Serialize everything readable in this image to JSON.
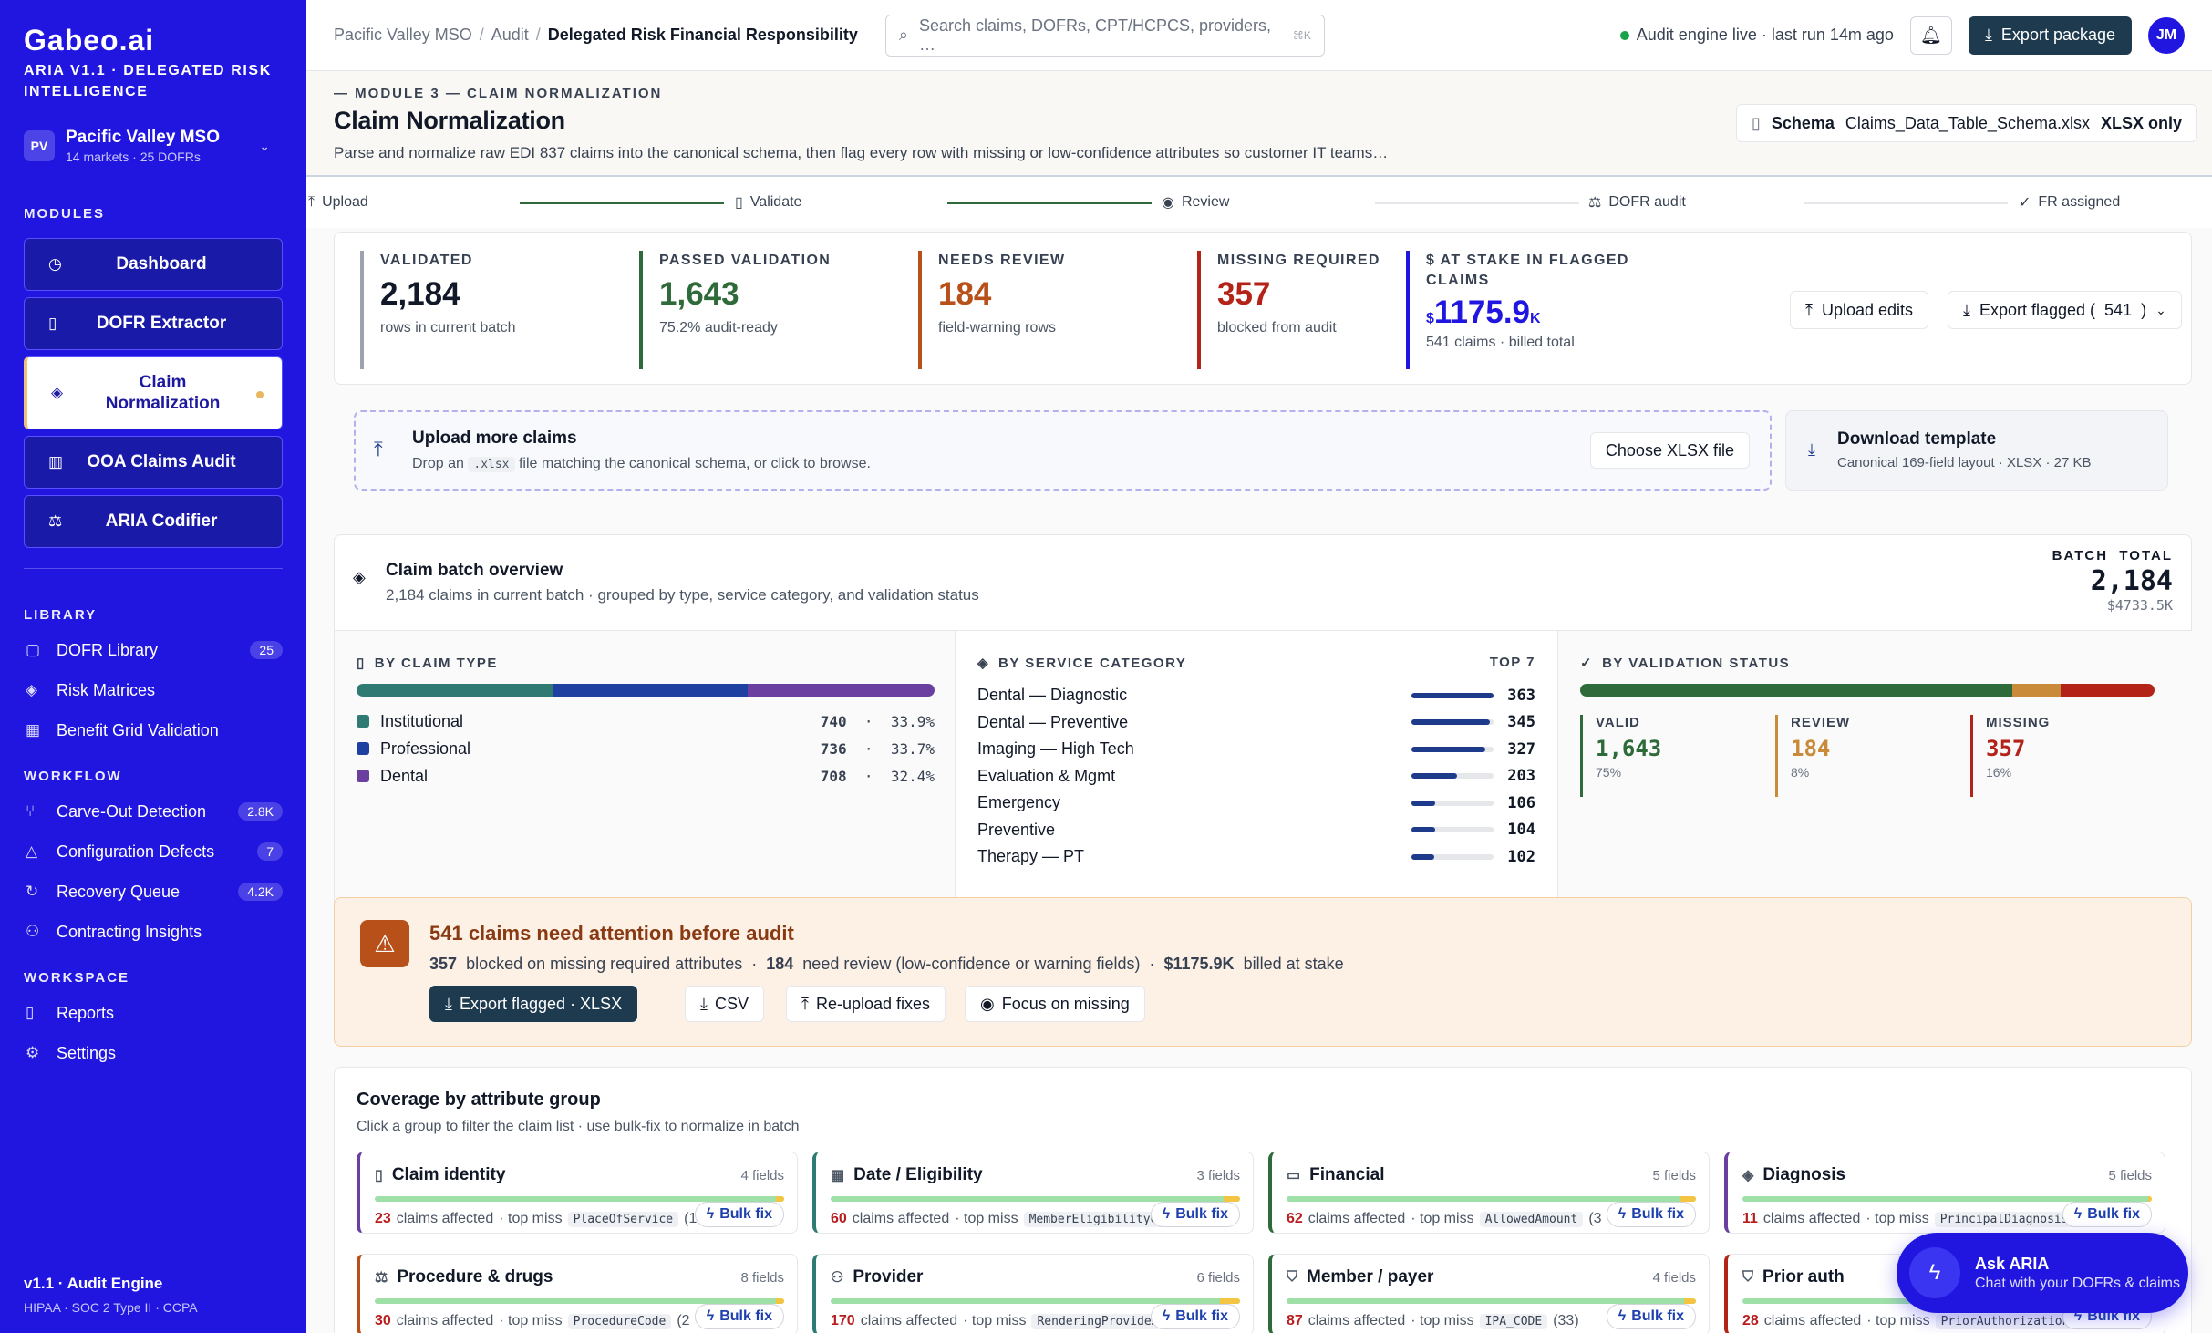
{
  "brand": {
    "logo": "Gabeo.ai",
    "subtitle": "ARIA V1.1 · DELEGATED RISK INTELLIGENCE"
  },
  "org": {
    "initials": "PV",
    "name": "Pacific Valley MSO",
    "meta": "14 markets · 25 DOFRs"
  },
  "sidebar": {
    "modules_title": "MODULES",
    "modules": [
      {
        "label": "Dashboard",
        "icon": "clock-icon"
      },
      {
        "label": "DOFR Extractor",
        "icon": "document-icon"
      },
      {
        "label": "Claim Normalization",
        "icon": "layers-icon",
        "active": true
      },
      {
        "label": "OOA Claims Audit",
        "icon": "map-icon"
      },
      {
        "label": "ARIA Codifier",
        "icon": "scale-icon"
      }
    ],
    "library_title": "LIBRARY",
    "library": [
      {
        "label": "DOFR Library",
        "badge": "25"
      },
      {
        "label": "Risk Matrices",
        "badge": ""
      },
      {
        "label": "Benefit Grid Validation",
        "badge": ""
      }
    ],
    "workflow_title": "WORKFLOW",
    "workflow": [
      {
        "label": "Carve-Out Detection",
        "badge": "2.8K"
      },
      {
        "label": "Configuration Defects",
        "badge": "7"
      },
      {
        "label": "Recovery Queue",
        "badge": "4.2K"
      },
      {
        "label": "Contracting Insights",
        "badge": ""
      }
    ],
    "workspace_title": "WORKSPACE",
    "workspace": [
      {
        "label": "Reports"
      },
      {
        "label": "Settings"
      }
    ],
    "footer": {
      "version": "v1.1 · Audit Engine",
      "compliance": "HIPAA · SOC 2 Type II · CCPA"
    }
  },
  "header": {
    "crumbs": [
      "Pacific Valley MSO",
      "Audit",
      "Delegated Risk Financial Responsibility"
    ],
    "search_placeholder": "Search claims, DOFRs, CPT/HCPCS, providers, …",
    "search_kbd": "⌘K",
    "status": "Audit engine live · last run 14m ago",
    "export": "Export package",
    "user": "JM"
  },
  "module": {
    "eyebrow": "MODULE 3 — CLAIM NORMALIZATION",
    "title": "Claim Normalization",
    "desc": "Parse and normalize raw EDI 837 claims into the canonical schema, then flag every row with missing or low-confidence attributes so customer IT teams…",
    "schema_label": "Schema",
    "schema_file": "Claims_Data_Table_Schema.xlsx",
    "schema_type": "XLSX only"
  },
  "steps": [
    "Upload",
    "Validate",
    "Review",
    "DOFR audit",
    "FR assigned"
  ],
  "kpis": [
    {
      "label": "VALIDATED",
      "value": "2,184",
      "sub": "rows in current batch",
      "color": "#9ca3af",
      "vcolor": "#111827"
    },
    {
      "label": "PASSED VALIDATION",
      "value": "1,643",
      "sub": "75.2% audit-ready",
      "color": "#2f6b3a",
      "vcolor": "#2f6b3a"
    },
    {
      "label": "NEEDS REVIEW",
      "value": "184",
      "sub": "field-warning rows",
      "color": "#b8501a",
      "vcolor": "#b8501a"
    },
    {
      "label": "MISSING REQUIRED",
      "value": "357",
      "sub": "blocked from audit",
      "color": "#b42318",
      "vcolor": "#b42318"
    }
  ],
  "stake": {
    "label_1": "$ AT STAKE IN FLAGGED",
    "label_2": "CLAIMS",
    "prefix": "$",
    "value": "1175.9",
    "suffix": "K",
    "sub": "541 claims · billed total"
  },
  "kpi_actions": {
    "upload": "Upload edits",
    "export": "Export flagged (",
    "count": "541",
    "close": ")"
  },
  "upload": {
    "title": "Upload more claims",
    "desc_1": "Drop an",
    "ext": ".xlsx",
    "desc_2": "file matching the canonical schema, or click to browse.",
    "choose": "Choose XLSX file",
    "tpl_title": "Download template",
    "tpl_desc": "Canonical 169-field layout · XLSX · 27 KB"
  },
  "batch": {
    "title": "Claim batch overview",
    "sub": "2,184 claims in current batch · grouped by type, service category, and validation status",
    "total_label_1": "BATCH",
    "total_label_2": "TOTAL",
    "total": "2,184",
    "billed": "$4733.5K"
  },
  "claim_type": {
    "title": "BY CLAIM TYPE",
    "items": [
      {
        "label": "Institutional",
        "count": "740",
        "pct": "33.9%",
        "frac": 0.339,
        "color": "#2f7a72"
      },
      {
        "label": "Professional",
        "count": "736",
        "pct": "33.7%",
        "frac": 0.337,
        "color": "#1e40a0"
      },
      {
        "label": "Dental",
        "count": "708",
        "pct": "32.4%",
        "frac": 0.324,
        "color": "#6b3fa0"
      }
    ]
  },
  "service": {
    "title": "BY SERVICE CATEGORY",
    "top": "TOP 7",
    "items": [
      {
        "label": "Dental — Diagnostic",
        "value": 363
      },
      {
        "label": "Dental — Preventive",
        "value": 345
      },
      {
        "label": "Imaging — High Tech",
        "value": 327
      },
      {
        "label": "Evaluation & Mgmt",
        "value": 203
      },
      {
        "label": "Emergency",
        "value": 106
      },
      {
        "label": "Preventive",
        "value": 104
      },
      {
        "label": "Therapy — PT",
        "value": 102
      }
    ]
  },
  "validation": {
    "title": "BY VALIDATION STATUS",
    "items": [
      {
        "label": "VALID",
        "value": "1,643",
        "pct": "75%",
        "frac": 0.752,
        "color": "#2f6b3a"
      },
      {
        "label": "REVIEW",
        "value": "184",
        "pct": "8%",
        "frac": 0.084,
        "color": "#c98a3a"
      },
      {
        "label": "MISSING",
        "value": "357",
        "pct": "16%",
        "frac": 0.164,
        "color": "#b42318"
      }
    ]
  },
  "alert": {
    "title": "541 claims need attention before audit",
    "n1": "357",
    "t1": "blocked on missing required attributes",
    "n2": "184",
    "t2": "need review (low-confidence or warning fields)",
    "n3": "$1175.9K",
    "t3": "billed at stake",
    "b1": "Export flagged · XLSX",
    "b2": "CSV",
    "b3": "Re-upload fixes",
    "b4": "Focus on missing"
  },
  "coverage": {
    "title": "Coverage by attribute group",
    "sub": "Click a group to filter the claim list · use bulk-fix to normalize in batch",
    "affected": "claims affected",
    "top_miss": "· top miss",
    "bulk": "Bulk fix",
    "groups": [
      {
        "name": "Claim identity",
        "fields": "4 fields",
        "count": "23",
        "miss": "PlaceOfService",
        "extra": "(1",
        "color": "#6b3fa0",
        "warn": 0.02,
        "icon": "document-icon"
      },
      {
        "name": "Date / Eligibility",
        "fields": "3 fields",
        "count": "60",
        "miss": "MemberEligibilityO…",
        "extra": "",
        "color": "#2f7a72",
        "warn": 0.04,
        "icon": "calendar-icon"
      },
      {
        "name": "Financial",
        "fields": "5 fields",
        "count": "62",
        "miss": "AllowedAmount",
        "extra": "(3",
        "color": "#2f6b3a",
        "warn": 0.04,
        "icon": "card-icon"
      },
      {
        "name": "Diagnosis",
        "fields": "5 fields",
        "count": "11",
        "miss": "PrincipalDiagnosis",
        "extra": "",
        "color": "#6b3fa0",
        "warn": 0.01,
        "icon": "layers-icon"
      },
      {
        "name": "Procedure & drugs",
        "fields": "8 fields",
        "count": "30",
        "miss": "ProcedureCode",
        "extra": "(2",
        "color": "#b8501a",
        "warn": 0.02,
        "icon": "scale-icon"
      },
      {
        "name": "Provider",
        "fields": "6 fields",
        "count": "170",
        "miss": "RenderingProvide…",
        "extra": "",
        "color": "#2f7a72",
        "warn": 0.05,
        "icon": "user-icon"
      },
      {
        "name": "Member / payer",
        "fields": "4 fields",
        "count": "87",
        "miss": "IPA_CODE",
        "extra": "(33)",
        "color": "#2f6b3a",
        "warn": 0.03,
        "icon": "shield-icon"
      },
      {
        "name": "Prior auth",
        "fields": "",
        "count": "28",
        "miss": "PriorAuthorization",
        "extra": "",
        "color": "#b42318",
        "warn": 0.02,
        "icon": "shield-icon"
      }
    ]
  },
  "aria": {
    "title": "Ask ARIA",
    "sub": "Chat with your DOFRs & claims"
  }
}
